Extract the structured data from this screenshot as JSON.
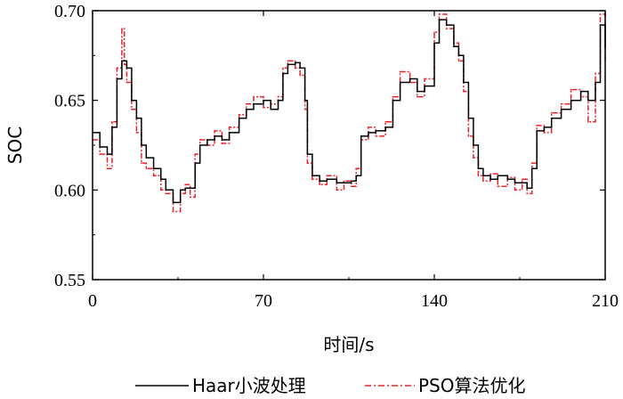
{
  "chart_data": {
    "type": "line",
    "xlabel": "时间/s",
    "ylabel": "SOC",
    "xlim": [
      0,
      210
    ],
    "ylim": [
      0.55,
      0.7
    ],
    "xticks": [
      "0",
      "70",
      "140",
      "210"
    ],
    "xtick_values": [
      0,
      70,
      140,
      210
    ],
    "yticks": [
      "0.55",
      "0.60",
      "0.65",
      "0.70"
    ],
    "ytick_values": [
      0.55,
      0.6,
      0.65,
      0.7
    ],
    "grid": false,
    "legend_position": "bottom",
    "series": [
      {
        "name": "Haar小波处理",
        "color": "#000000",
        "style": "solid",
        "x": [
          0,
          3,
          6,
          8,
          10,
          12,
          14,
          16,
          18,
          20,
          22,
          25,
          28,
          30,
          33,
          36,
          38,
          40,
          42,
          44,
          47,
          50,
          53,
          56,
          60,
          63,
          66,
          70,
          73,
          76,
          78,
          80,
          83,
          85,
          87,
          88,
          90,
          93,
          96,
          100,
          103,
          106,
          108,
          110,
          113,
          116,
          120,
          123,
          126,
          130,
          133,
          136,
          140,
          142,
          145,
          148,
          150,
          152,
          154,
          156,
          158,
          160,
          163,
          166,
          170,
          173,
          176,
          178,
          180,
          182,
          185,
          188,
          192,
          196,
          200,
          203,
          206,
          208,
          210
        ],
        "values": [
          0.632,
          0.624,
          0.62,
          0.635,
          0.662,
          0.672,
          0.668,
          0.65,
          0.64,
          0.625,
          0.618,
          0.612,
          0.606,
          0.6,
          0.593,
          0.6,
          0.601,
          0.601,
          0.615,
          0.625,
          0.628,
          0.63,
          0.628,
          0.632,
          0.64,
          0.645,
          0.648,
          0.65,
          0.645,
          0.65,
          0.665,
          0.67,
          0.671,
          0.668,
          0.65,
          0.62,
          0.608,
          0.605,
          0.606,
          0.604,
          0.604,
          0.605,
          0.608,
          0.63,
          0.632,
          0.633,
          0.635,
          0.65,
          0.66,
          0.662,
          0.655,
          0.658,
          0.682,
          0.695,
          0.692,
          0.68,
          0.675,
          0.66,
          0.64,
          0.625,
          0.612,
          0.608,
          0.606,
          0.608,
          0.606,
          0.604,
          0.604,
          0.601,
          0.612,
          0.633,
          0.635,
          0.64,
          0.645,
          0.65,
          0.655,
          0.65,
          0.66,
          0.692,
          0.68
        ]
      },
      {
        "name": "PSO算法优化",
        "color": "#e8232a",
        "style": "dashdot",
        "x": [
          0,
          3,
          6,
          8,
          10,
          12,
          13,
          14,
          16,
          18,
          20,
          22,
          25,
          28,
          30,
          33,
          36,
          38,
          40,
          42,
          44,
          47,
          50,
          53,
          56,
          60,
          63,
          66,
          70,
          73,
          76,
          78,
          80,
          83,
          85,
          87,
          88,
          90,
          93,
          96,
          100,
          103,
          106,
          108,
          110,
          113,
          116,
          120,
          123,
          126,
          130,
          133,
          136,
          140,
          142,
          145,
          148,
          150,
          152,
          154,
          156,
          158,
          160,
          163,
          166,
          170,
          173,
          176,
          178,
          180,
          182,
          185,
          188,
          192,
          196,
          200,
          203,
          206,
          208,
          210
        ],
        "values": [
          0.628,
          0.62,
          0.612,
          0.638,
          0.668,
          0.69,
          0.67,
          0.66,
          0.645,
          0.632,
          0.615,
          0.612,
          0.608,
          0.6,
          0.598,
          0.588,
          0.598,
          0.603,
          0.596,
          0.62,
          0.628,
          0.625,
          0.633,
          0.626,
          0.635,
          0.642,
          0.648,
          0.652,
          0.646,
          0.648,
          0.652,
          0.668,
          0.672,
          0.668,
          0.664,
          0.645,
          0.615,
          0.606,
          0.603,
          0.608,
          0.6,
          0.605,
          0.602,
          0.612,
          0.628,
          0.635,
          0.63,
          0.638,
          0.652,
          0.666,
          0.66,
          0.652,
          0.662,
          0.688,
          0.698,
          0.69,
          0.682,
          0.672,
          0.655,
          0.63,
          0.618,
          0.608,
          0.605,
          0.609,
          0.602,
          0.607,
          0.6,
          0.606,
          0.598,
          0.615,
          0.636,
          0.632,
          0.643,
          0.648,
          0.656,
          0.652,
          0.638,
          0.665,
          0.698,
          0.672
        ]
      }
    ]
  },
  "colors": {
    "axis": "#000000",
    "series_black": "#000000",
    "series_red": "#e8232a"
  }
}
